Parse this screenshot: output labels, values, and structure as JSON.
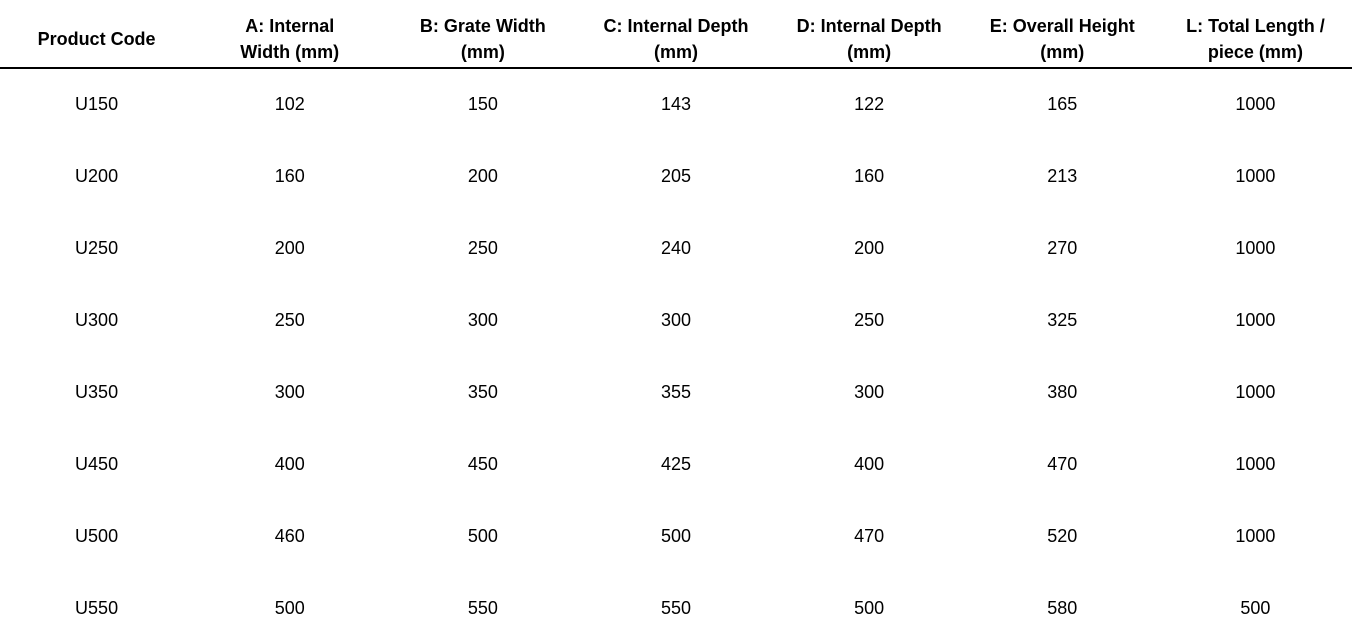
{
  "colors": {
    "background": "#ffffff",
    "text": "#000000",
    "header_rule": "#000000"
  },
  "table": {
    "headers": [
      {
        "lines": [
          "Product Code"
        ]
      },
      {
        "lines": [
          "A: Internal",
          "Width (mm)"
        ]
      },
      {
        "lines": [
          "B: Grate Width",
          "(mm)"
        ]
      },
      {
        "lines": [
          "C: Internal Depth",
          "(mm)"
        ]
      },
      {
        "lines": [
          "D: Internal Depth",
          "(mm)"
        ]
      },
      {
        "lines": [
          "E: Overall Height",
          "(mm)"
        ]
      },
      {
        "lines": [
          "L: Total Length /",
          "piece (mm)"
        ]
      }
    ],
    "rows": [
      {
        "code": "U150",
        "values": [
          "102",
          "150",
          "143",
          "122",
          "165",
          "1000"
        ]
      },
      {
        "code": "U200",
        "values": [
          "160",
          "200",
          "205",
          "160",
          "213",
          "1000"
        ]
      },
      {
        "code": "U250",
        "values": [
          "200",
          "250",
          "240",
          "200",
          "270",
          "1000"
        ]
      },
      {
        "code": "U300",
        "values": [
          "250",
          "300",
          "300",
          "250",
          "325",
          "1000"
        ]
      },
      {
        "code": "U350",
        "values": [
          "300",
          "350",
          "355",
          "300",
          "380",
          "1000"
        ]
      },
      {
        "code": "U450",
        "values": [
          "400",
          "450",
          "425",
          "400",
          "470",
          "1000"
        ]
      },
      {
        "code": "U500",
        "values": [
          "460",
          "500",
          "500",
          "470",
          "520",
          "1000"
        ]
      },
      {
        "code": "U550",
        "values": [
          "500",
          "550",
          "550",
          "500",
          "580",
          "500"
        ]
      }
    ]
  }
}
